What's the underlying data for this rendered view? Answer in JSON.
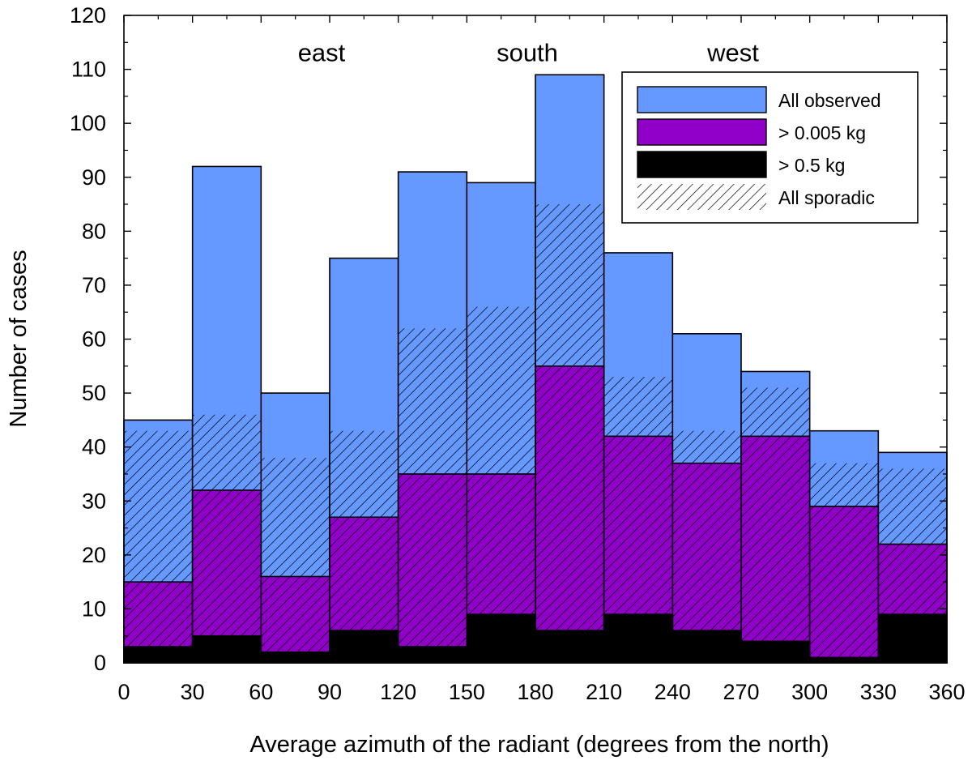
{
  "chart_data": {
    "type": "bar",
    "bin_edges": [
      0,
      30,
      60,
      90,
      120,
      150,
      180,
      210,
      240,
      270,
      300,
      330,
      360
    ],
    "series": [
      {
        "name": "All observed",
        "values": [
          45,
          92,
          50,
          75,
          91,
          89,
          109,
          76,
          61,
          54,
          43,
          39
        ],
        "color": "#6699ff",
        "style": "fill"
      },
      {
        "name": "> 0.005 kg",
        "values": [
          15,
          32,
          16,
          27,
          35,
          35,
          55,
          42,
          37,
          42,
          29,
          22
        ],
        "color": "#9000c8",
        "style": "fill"
      },
      {
        "name": "> 0.5 kg",
        "values": [
          3,
          5,
          2,
          6,
          3,
          9,
          6,
          9,
          6,
          4,
          1,
          9
        ],
        "color": "#000000",
        "style": "fill"
      },
      {
        "name": "All sporadic",
        "values": [
          43,
          46,
          38,
          43,
          62,
          66,
          85,
          53,
          43,
          51,
          37,
          36
        ],
        "color": "#000000",
        "style": "hatch"
      }
    ],
    "xlabel": "Average azimuth of the radiant (degrees from the north)",
    "ylabel": "Number of cases",
    "xlim": [
      0,
      360
    ],
    "ylim": [
      0,
      120
    ],
    "xticks": [
      0,
      30,
      60,
      90,
      120,
      150,
      180,
      210,
      240,
      270,
      300,
      330,
      360
    ],
    "yticks": [
      0,
      10,
      20,
      30,
      40,
      50,
      60,
      70,
      80,
      90,
      100,
      110,
      120
    ],
    "annotations": [
      {
        "text": "east",
        "x": 90,
        "y": 113
      },
      {
        "text": "south",
        "x": 180,
        "y": 113
      },
      {
        "text": "west",
        "x": 270,
        "y": 113
      }
    ],
    "legend_position": "top-right",
    "grid": false
  }
}
